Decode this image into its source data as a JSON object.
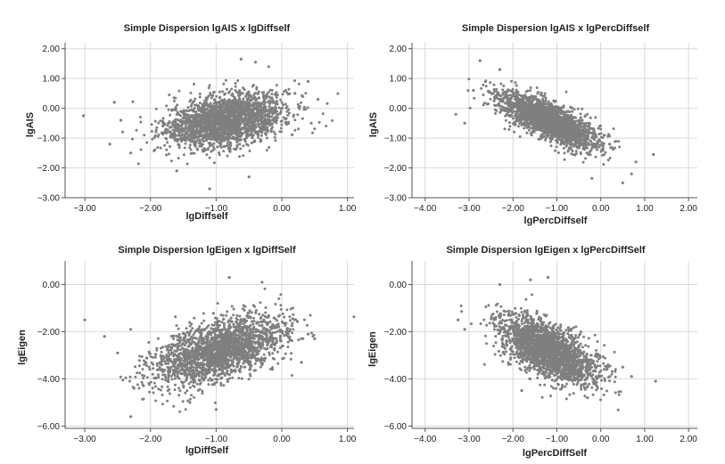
{
  "chart_data": [
    {
      "type": "scatter",
      "title": "Simple Dispersion lgAIS x lgDiffself",
      "xlabel": "lgDiffself",
      "ylabel": "lgAIS",
      "xlim": [
        -3.3,
        1.1
      ],
      "ylim": [
        -3.0,
        2.2
      ],
      "xticks": [
        -3,
        -2,
        -1,
        0,
        1
      ],
      "yticks": [
        -3,
        -2,
        -1,
        0,
        1,
        2
      ],
      "xtick_labels": [
        "-3.00",
        "-2.00",
        "-1.00",
        "0.00",
        "1.00"
      ],
      "ytick_labels": [
        "-3.00",
        "-2.00",
        "-1.00",
        "0.00",
        "1.00",
        "2.00"
      ],
      "grid": true,
      "point_color": "#7f7f7f",
      "cloud": {
        "x_center": -0.85,
        "y_center": -0.4,
        "x_spread": 0.45,
        "y_spread": 0.45,
        "correlation": 0.35,
        "count": 2200
      },
      "points": [
        {
          "x": -3.02,
          "y": -0.25
        },
        {
          "x": -2.55,
          "y": 0.2
        },
        {
          "x": -2.62,
          "y": -1.2
        },
        {
          "x": -2.45,
          "y": -0.4
        },
        {
          "x": -2.3,
          "y": -1.5
        },
        {
          "x": -0.62,
          "y": 1.65
        },
        {
          "x": -0.4,
          "y": 1.55
        },
        {
          "x": -0.2,
          "y": 1.4
        },
        {
          "x": -1.1,
          "y": -2.7
        },
        {
          "x": -0.5,
          "y": -2.3
        },
        {
          "x": 0.4,
          "y": 0.9
        },
        {
          "x": 0.55,
          "y": 0.3
        },
        {
          "x": 0.45,
          "y": -0.5
        },
        {
          "x": -1.6,
          "y": -2.1
        },
        {
          "x": 0.2,
          "y": 0.5
        }
      ]
    },
    {
      "type": "scatter",
      "title": "Simple Dispersion lgAIS x lgPercDiffself",
      "xlabel": "lgPercDiffself",
      "ylabel": "lgAIS",
      "xlim": [
        -4.3,
        2.2
      ],
      "ylim": [
        -3.0,
        2.2
      ],
      "xticks": [
        -4,
        -3,
        -2,
        -1,
        0,
        1,
        2
      ],
      "yticks": [
        -3,
        -2,
        -1,
        0,
        1,
        2
      ],
      "xtick_labels": [
        "-4.00",
        "-3.00",
        "-2.00",
        "-1.00",
        "0.00",
        "1.00",
        "2.00"
      ],
      "ytick_labels": [
        "-3.00",
        "-2.00",
        "-1.00",
        "0.00",
        "1.00",
        "2.00"
      ],
      "grid": true,
      "point_color": "#7f7f7f",
      "cloud": {
        "x_center": -1.2,
        "y_center": -0.4,
        "x_spread": 0.55,
        "y_spread": 0.45,
        "correlation": -0.75,
        "count": 2200
      },
      "points": [
        {
          "x": -2.75,
          "y": 1.6
        },
        {
          "x": -3.3,
          "y": -0.2
        },
        {
          "x": -3.1,
          "y": -0.5
        },
        {
          "x": 1.2,
          "y": -1.55
        },
        {
          "x": 0.7,
          "y": -2.2
        },
        {
          "x": 0.5,
          "y": -2.5
        },
        {
          "x": -0.2,
          "y": -2.35
        },
        {
          "x": -2.9,
          "y": 0.6
        },
        {
          "x": 0.8,
          "y": -1.8
        },
        {
          "x": -2.3,
          "y": 1.3
        }
      ]
    },
    {
      "type": "scatter",
      "title": "Simple Dispersion lgEigen x lgDiffSelf",
      "xlabel": "lgDiffSelf",
      "ylabel": "lgEigen",
      "xlim": [
        -3.3,
        1.1
      ],
      "ylim": [
        -6.1,
        1.0
      ],
      "xticks": [
        -3,
        -2,
        -1,
        0,
        1
      ],
      "yticks": [
        -6,
        -4,
        -2,
        0
      ],
      "xtick_labels": [
        "-3.00",
        "-2.00",
        "-1.00",
        "0.00",
        "1.00"
      ],
      "ytick_labels": [
        "-6.00",
        "-4.00",
        "-2.00",
        "0.00"
      ],
      "grid": true,
      "point_color": "#7f7f7f",
      "cloud": {
        "x_center": -0.95,
        "y_center": -2.8,
        "x_spread": 0.5,
        "y_spread": 0.75,
        "correlation": 0.55,
        "count": 2200
      },
      "points": [
        {
          "x": -3.0,
          "y": -1.5
        },
        {
          "x": -2.7,
          "y": -2.2
        },
        {
          "x": -2.5,
          "y": -2.9
        },
        {
          "x": -2.3,
          "y": -1.9
        },
        {
          "x": -2.3,
          "y": -5.6
        },
        {
          "x": -0.8,
          "y": 0.3
        },
        {
          "x": -0.3,
          "y": 0.1
        },
        {
          "x": 0.4,
          "y": -2.1
        },
        {
          "x": 0.5,
          "y": -2.3
        },
        {
          "x": -1.0,
          "y": -5.3
        },
        {
          "x": -1.4,
          "y": -5.0
        },
        {
          "x": 0.3,
          "y": -3.3
        }
      ]
    },
    {
      "type": "scatter",
      "title": "Simple Dispersion lgEigen x lgPercDiffSelf",
      "xlabel": "lgPercDiffSelf",
      "ylabel": "lgEigen",
      "xlim": [
        -4.3,
        2.2
      ],
      "ylim": [
        -6.1,
        1.0
      ],
      "xticks": [
        -4,
        -3,
        -2,
        -1,
        0,
        1,
        2
      ],
      "yticks": [
        -6,
        -4,
        -2,
        0
      ],
      "xtick_labels": [
        "-4.00",
        "-3.00",
        "-2.00",
        "-1.00",
        "0.00",
        "1.00",
        "2.00"
      ],
      "ytick_labels": [
        "-6.00",
        "-4.00",
        "-2.00",
        "0.00"
      ],
      "grid": true,
      "point_color": "#7f7f7f",
      "cloud": {
        "x_center": -1.2,
        "y_center": -2.8,
        "x_spread": 0.55,
        "y_spread": 0.7,
        "correlation": -0.6,
        "count": 2200
      },
      "points": [
        {
          "x": -3.25,
          "y": -1.5
        },
        {
          "x": -3.1,
          "y": -1.9
        },
        {
          "x": 1.25,
          "y": -4.1
        },
        {
          "x": 0.7,
          "y": -3.9
        },
        {
          "x": -2.3,
          "y": 0.0
        },
        {
          "x": -1.6,
          "y": 0.2
        },
        {
          "x": -1.2,
          "y": 0.3
        },
        {
          "x": -0.3,
          "y": -4.8
        },
        {
          "x": -1.8,
          "y": -4.5
        },
        {
          "x": 0.5,
          "y": -3.5
        }
      ]
    }
  ]
}
